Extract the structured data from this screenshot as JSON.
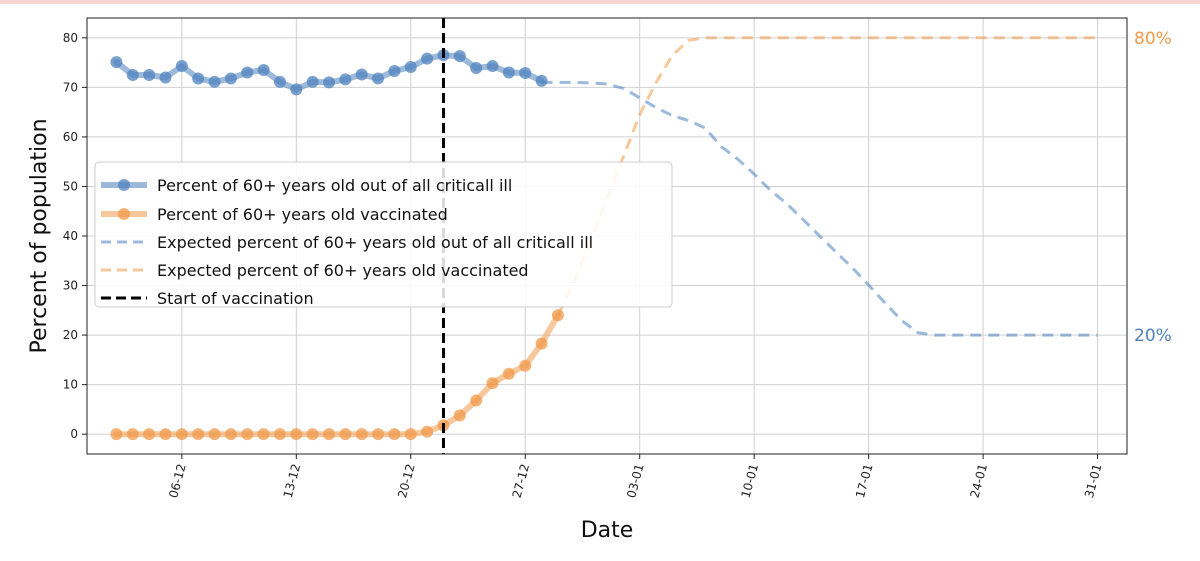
{
  "chart_data": {
    "type": "line",
    "xlabel": "Date",
    "ylabel": "Percent of population",
    "ylim": [
      -4,
      84
    ],
    "y_ticks": [
      0,
      10,
      20,
      30,
      40,
      50,
      60,
      70,
      80
    ],
    "x_tick_labels": [
      "06-12",
      "13-12",
      "20-12",
      "27-12",
      "03-01",
      "10-01",
      "17-01",
      "24-01",
      "31-01"
    ],
    "x_tick_days": [
      5,
      12,
      19,
      26,
      33,
      40,
      47,
      54,
      61
    ],
    "xlim_days": [
      -0.8,
      62.8
    ],
    "grid": true,
    "legend_position": "center-left",
    "colors": {
      "blue": "#4f81bd",
      "orange": "#f09a4a",
      "black": "#000000"
    },
    "series": [
      {
        "name": "Percent of 60+ years old out of all criticall ill",
        "style": "solid-markers",
        "color": "#4f81bd",
        "x": [
          1,
          2,
          3,
          4,
          5,
          6,
          7,
          8,
          9,
          10,
          11,
          12,
          13,
          14,
          15,
          16,
          17,
          18,
          19,
          20,
          21,
          22,
          23,
          24,
          25,
          26,
          27
        ],
        "y": [
          75.1,
          72.5,
          72.5,
          72.0,
          74.3,
          71.8,
          71.1,
          71.8,
          73.0,
          73.5,
          71.1,
          69.6,
          71.1,
          71.0,
          71.6,
          72.6,
          71.8,
          73.3,
          74.1,
          75.8,
          76.5,
          76.3,
          73.9,
          74.3,
          73.0,
          72.9,
          71.3
        ]
      },
      {
        "name": "Percent of 60+ years old vaccinated",
        "style": "solid-markers",
        "color": "#f09a4a",
        "x": [
          1,
          2,
          3,
          4,
          5,
          6,
          7,
          8,
          9,
          10,
          11,
          12,
          13,
          14,
          15,
          16,
          17,
          18,
          19,
          20,
          21,
          22,
          23,
          24,
          25,
          26,
          27,
          28
        ],
        "y": [
          0,
          0,
          0,
          0,
          0,
          0,
          0,
          0,
          0,
          0,
          0,
          0,
          0,
          0,
          0,
          0,
          0,
          0,
          0,
          0.5,
          1.8,
          3.8,
          6.8,
          10.3,
          12.2,
          13.8,
          18.3,
          24.0
        ]
      },
      {
        "name": "Expected percent of 60+ years old out of all criticall ill",
        "style": "dashed",
        "color": "#4f81bd",
        "x": [
          27,
          28,
          29,
          30,
          31,
          32,
          33,
          34,
          35,
          36,
          37,
          38,
          39,
          40,
          41,
          42,
          43,
          44,
          45,
          46,
          47,
          48,
          49,
          50,
          51,
          52,
          53,
          54,
          55,
          56,
          57,
          58,
          59,
          60,
          61
        ],
        "y": [
          71.0,
          71.0,
          71.0,
          70.9,
          70.7,
          69.8,
          67.9,
          65.9,
          64.3,
          63.3,
          61.8,
          58.0,
          55.5,
          52.5,
          49.2,
          46.5,
          43.3,
          40.0,
          36.8,
          33.6,
          30.1,
          26.5,
          23.0,
          20.5,
          20,
          20,
          20,
          20,
          20,
          20,
          20,
          20,
          20,
          20,
          20
        ]
      },
      {
        "name": "Expected percent of 60+ years old vaccinated",
        "style": "dashed",
        "color": "#f09a4a",
        "x": [
          28,
          29,
          30,
          31,
          32,
          33,
          34,
          35,
          36,
          37,
          38,
          39,
          40,
          41,
          42,
          43,
          44,
          45,
          46,
          47,
          48,
          49,
          50,
          51,
          52,
          53,
          54,
          55,
          56,
          57,
          58,
          59,
          60,
          61
        ],
        "y": [
          24.0,
          31.0,
          39.0,
          47.5,
          56.0,
          64.5,
          71.0,
          76.5,
          79.5,
          80,
          80,
          80,
          80,
          80,
          80,
          80,
          80,
          80,
          80,
          80,
          80,
          80,
          80,
          80,
          80,
          80,
          80,
          80,
          80,
          80,
          80,
          80,
          80,
          80
        ]
      },
      {
        "name": "Start of vaccination",
        "style": "vertical-dashed",
        "color": "#000000",
        "x_day": 21
      }
    ],
    "right_annotations": [
      {
        "text": "80%",
        "y": 80,
        "color": "#f09a4a"
      },
      {
        "text": "20%",
        "y": 20,
        "color": "#4f81bd"
      }
    ]
  }
}
